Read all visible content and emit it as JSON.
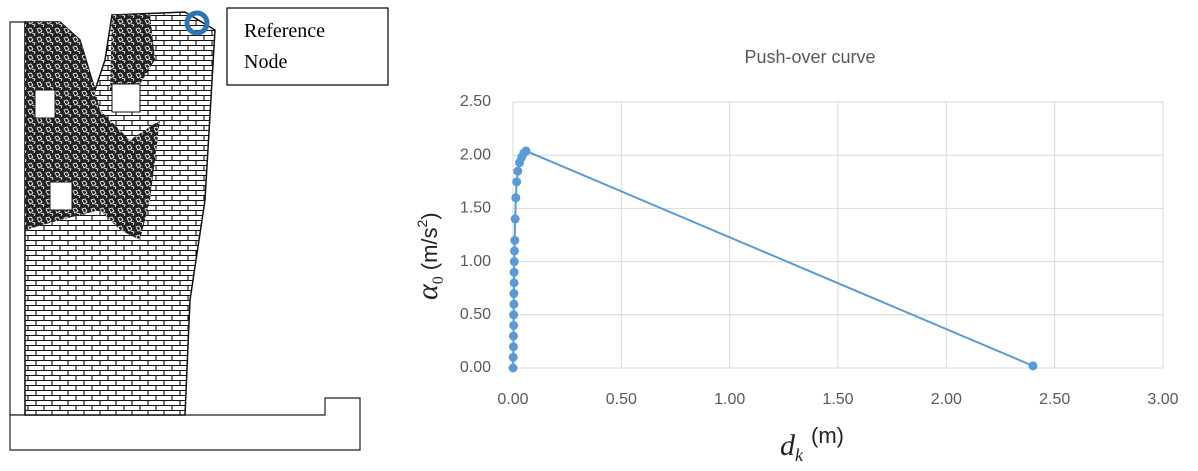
{
  "figure": {
    "annotation": [
      "Reference",
      "Node"
    ]
  },
  "chart_data": {
    "type": "line",
    "title": "Push-over curve",
    "x_label": {
      "symbol": "d",
      "subscript": "k",
      "unit": "(m)"
    },
    "y_label": {
      "symbol": "α",
      "subscript": "0",
      "unit": "(m/s",
      "superscript": "2",
      "unit_end": ")"
    },
    "series": [
      {
        "name": "Push-over curve",
        "color": "#5b9bd5",
        "markers": true,
        "x": [
          0,
          0.001,
          0.002,
          0.002,
          0.003,
          0.003,
          0.004,
          0.004,
          0.005,
          0.005,
          0.006,
          0.007,
          0.008,
          0.01,
          0.013,
          0.017,
          0.022,
          0.03,
          0.04,
          0.05,
          0.06,
          2.4
        ],
        "values": [
          0,
          0.1,
          0.2,
          0.3,
          0.4,
          0.5,
          0.6,
          0.7,
          0.8,
          0.9,
          1.0,
          1.1,
          1.2,
          1.4,
          1.6,
          1.75,
          1.85,
          1.93,
          1.98,
          2.02,
          2.04,
          0.02
        ]
      }
    ],
    "xlim": [
      0,
      3
    ],
    "ylim": [
      0,
      2.5
    ],
    "xticks": [
      {
        "value": 0,
        "label": "0.00"
      },
      {
        "value": 0.5,
        "label": "0.50"
      },
      {
        "value": 1,
        "label": "1.00"
      },
      {
        "value": 1.5,
        "label": "1.50"
      },
      {
        "value": 2,
        "label": "2.00"
      },
      {
        "value": 2.5,
        "label": "2.50"
      },
      {
        "value": 3,
        "label": "3.00"
      }
    ],
    "yticks": [
      {
        "value": 0,
        "label": "0.00"
      },
      {
        "value": 0.5,
        "label": "0.50"
      },
      {
        "value": 1,
        "label": "1.00"
      },
      {
        "value": 1.5,
        "label": "1.50"
      },
      {
        "value": 2,
        "label": "2.00"
      },
      {
        "value": 2.5,
        "label": "2.50"
      }
    ],
    "grid": true
  }
}
